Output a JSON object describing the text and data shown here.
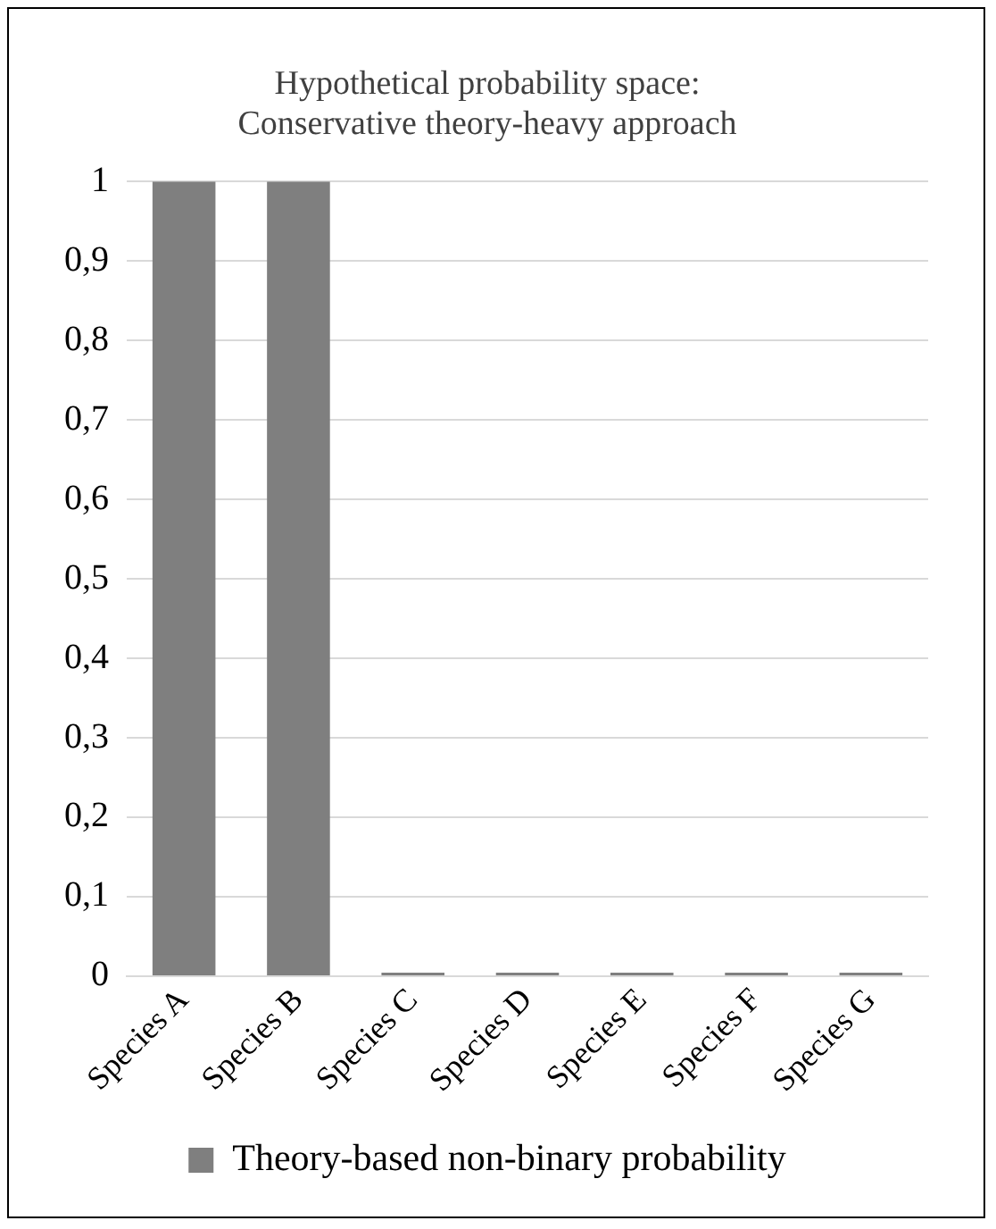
{
  "chart_data": {
    "type": "bar",
    "title": "Hypothetical probability space: Conservative theory-heavy approach",
    "categories": [
      "Species A",
      "Species B",
      "Species C",
      "Species D",
      "Species E",
      "Species F",
      "Species G"
    ],
    "series": [
      {
        "name": "Theory-based non-binary probability",
        "color": "#7f7f7f",
        "values": [
          1,
          1,
          0,
          0,
          0,
          0,
          0
        ]
      }
    ],
    "ylim": [
      0,
      1
    ],
    "yticks": [
      0,
      {
        "value": 0.1,
        "label": "0,1"
      },
      {
        "value": 0.2,
        "label": "0,2"
      },
      {
        "value": 0.3,
        "label": "0,3"
      },
      {
        "value": 0.4,
        "label": "0,4"
      },
      {
        "value": 0.5,
        "label": "0,5"
      },
      {
        "value": 0.6,
        "label": "0,6"
      },
      {
        "value": 0.7,
        "label": "0,7"
      },
      {
        "value": 0.8,
        "label": "0,8"
      },
      {
        "value": 0.9,
        "label": "0,9"
      },
      1
    ],
    "grid": "y",
    "legend": "bottom"
  }
}
